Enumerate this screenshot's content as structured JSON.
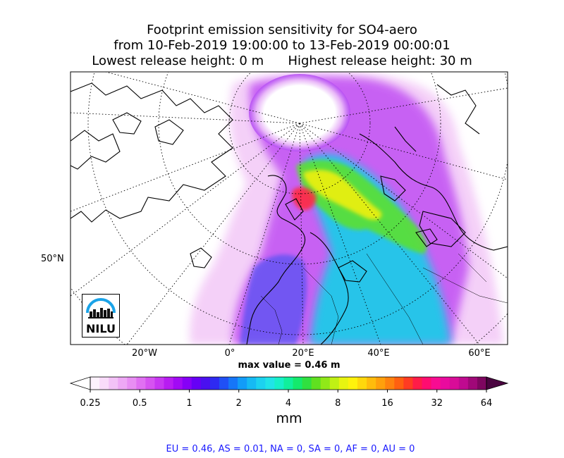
{
  "chart_data": {
    "type": "heatmap",
    "title_lines": [
      "Footprint emission sensitivity for SO4-aero",
      "from 10-Feb-2019 19:00:00 to 13-Feb-2019 00:00:01",
      "Lowest release height: 0 m      Highest release height: 30 m"
    ],
    "x_tick_labels": [
      "20°W",
      "0°",
      "20°E",
      "40°E",
      "60°E"
    ],
    "y_tick_labels": [
      "50°N"
    ],
    "annotation": "max value = 0.46 m",
    "colorbar": {
      "ticks": [
        "0.25",
        "0.5",
        "1",
        "2",
        "4",
        "8",
        "16",
        "32",
        "64"
      ],
      "unit": "mm",
      "scale": "log",
      "extend": "both",
      "colors": [
        "#fdf2fd",
        "#f9dcfa",
        "#f3c2f7",
        "#eea8f5",
        "#e88ef3",
        "#e070f2",
        "#d653f1",
        "#c837f2",
        "#b81cf2",
        "#a20af4",
        "#8600f6",
        "#6600f5",
        "#4a10f0",
        "#2e2af2",
        "#2050f5",
        "#1676f8",
        "#129cf8",
        "#16baf4",
        "#1cd2f0",
        "#20e4e8",
        "#16f0c8",
        "#10f09c",
        "#14ea6c",
        "#30e040",
        "#60e020",
        "#90e818",
        "#c0f014",
        "#e8f410",
        "#fff20c",
        "#ffd80c",
        "#ffbc0c",
        "#ffa00c",
        "#ff820e",
        "#ff6010",
        "#ff3c22",
        "#ff1c48",
        "#ff0c70",
        "#f80c92",
        "#ea0a9e",
        "#d80c98",
        "#c00a90",
        "#a00878",
        "#7e0660"
      ]
    }
  },
  "footer": "EU = 0.46,  AS = 0.01,  NA = 0,  SA = 0,  AF = 0,  AU = 0",
  "logo_text": "NILU",
  "colors": {
    "footer": "#1a1aff",
    "frame": "#000000"
  }
}
